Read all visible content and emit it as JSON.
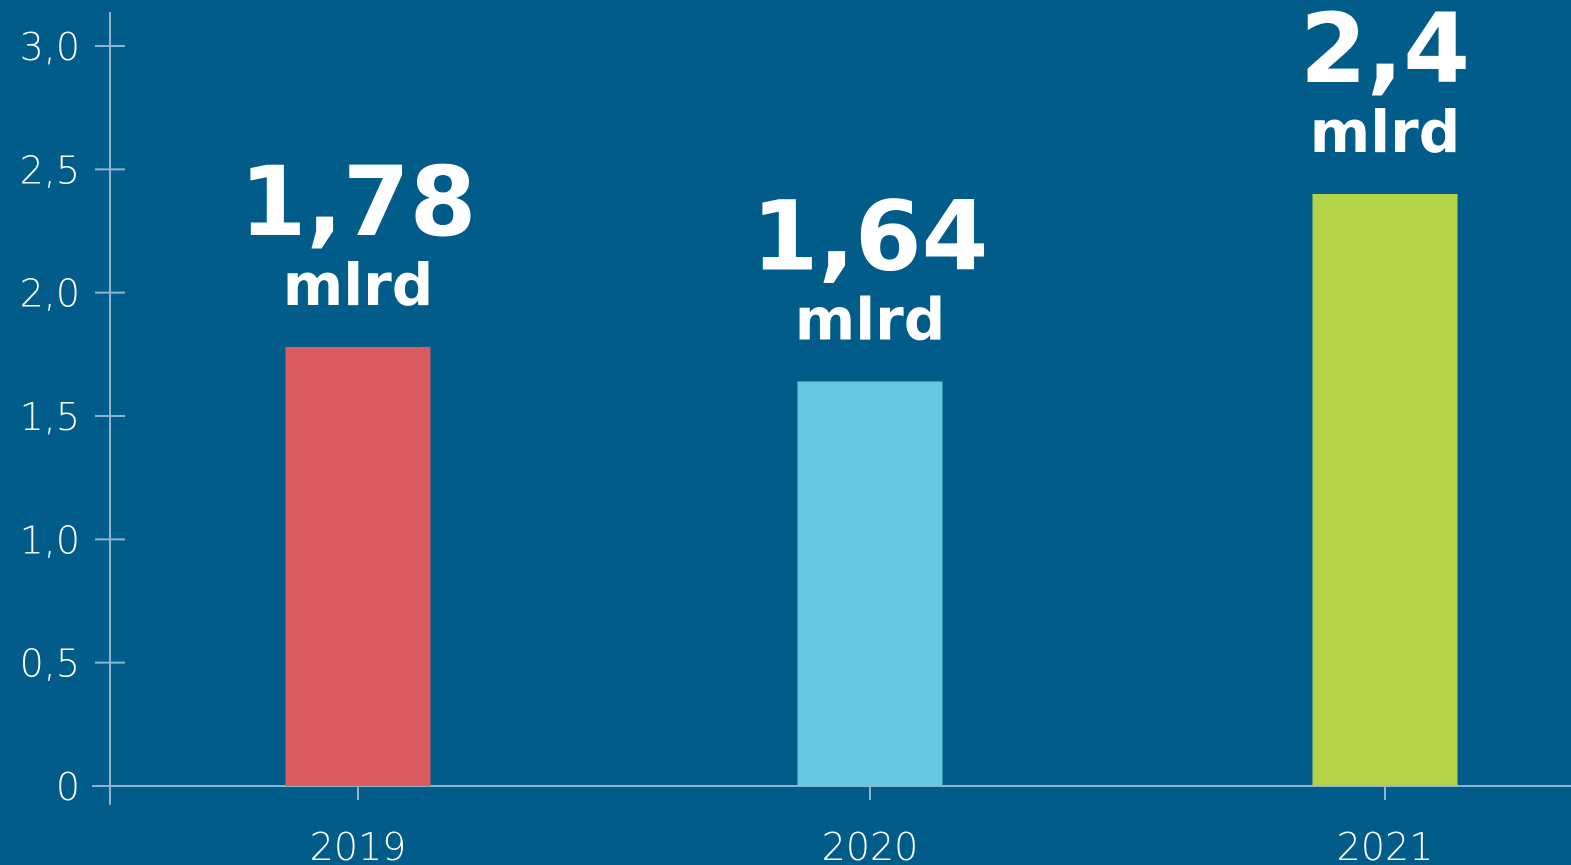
{
  "chart_data": {
    "type": "bar",
    "categories": [
      "2019",
      "2020",
      "2021"
    ],
    "values": [
      1.78,
      1.64,
      2.4
    ],
    "value_labels": [
      "1,78",
      "1,64",
      "2,4"
    ],
    "value_unit": "mlrd",
    "colors": [
      "#d95b60",
      "#64c8e2",
      "#b5d34a"
    ],
    "ylim": [
      0,
      3
    ],
    "yticks": [
      0,
      {
        "value": 0.5,
        "label": "0,5"
      },
      {
        "value": 1,
        "label": "1,0"
      },
      {
        "value": 1.5,
        "label": "1,5"
      },
      {
        "value": 2,
        "label": "2,0"
      },
      {
        "value": 2.5,
        "label": "2,5"
      },
      {
        "value": 3,
        "label": "3,0"
      }
    ]
  }
}
